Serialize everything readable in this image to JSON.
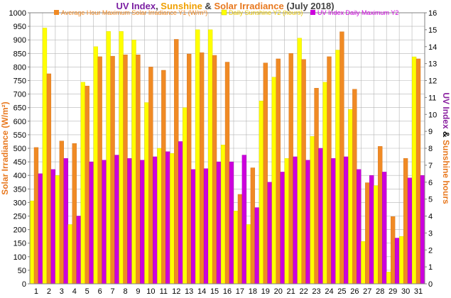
{
  "title": {
    "part1": "UV Index",
    "sep1": ", ",
    "part2": "Sunshine",
    "sep2": " & ",
    "part3": "Solar Irradiance",
    "part4": " (July 2018)",
    "colors": {
      "uv": "#7b1fa2",
      "sunshine": "#f0a000",
      "solar": "#e8781e",
      "plain": "#444444"
    }
  },
  "legend": [
    {
      "label": "Average Hour Maximum Solar Irradiance Y1 (W/m²)",
      "color": "#f08a24",
      "text_color": "#f08a24"
    },
    {
      "label": "Daily Sunshine Y2 (hours)",
      "color": "#ffff00",
      "text_color": "#e8c800"
    },
    {
      "label": "UV Index Daily Maximum Y2",
      "color": "#cc00dd",
      "text_color": "#cc00dd"
    }
  ],
  "y1_label": {
    "text": "Solar Irradiance (W/m²)",
    "color": "#e8781e"
  },
  "y2_label": {
    "part1": "UV Index",
    "part2": " & ",
    "part3": "Sunshine hours",
    "color_uv": "#8a20a0",
    "color_amp": "#000000",
    "color_sun": "#e8781e"
  },
  "chart_data": {
    "type": "bar",
    "categories": [
      "1",
      "2",
      "3",
      "4",
      "5",
      "6",
      "7",
      "8",
      "9",
      "10",
      "11",
      "12",
      "13",
      "14",
      "15",
      "16",
      "17",
      "18",
      "19",
      "20",
      "21",
      "22",
      "23",
      "24",
      "25",
      "26",
      "27",
      "28",
      "29",
      "30",
      "31"
    ],
    "y1lim": [
      0,
      1000
    ],
    "y2lim": [
      0,
      16
    ],
    "y1_ticks": [
      "0",
      "50",
      "100",
      "150",
      "200",
      "250",
      "300",
      "350",
      "400",
      "450",
      "500",
      "550",
      "600",
      "650",
      "700",
      "750",
      "800",
      "850",
      "900",
      "950",
      "1000"
    ],
    "y2_ticks": [
      "0",
      "1",
      "2",
      "3",
      "4",
      "5",
      "6",
      "7",
      "8",
      "9",
      "10",
      "11",
      "12",
      "13",
      "14",
      "15",
      "16"
    ],
    "y1_tick_color": "#e8781e",
    "y2_tick_color": "#8a20a0",
    "grid": true,
    "legend_position": "top",
    "series": [
      {
        "name": "Average Hour Maximum Solar Irradiance Y1 (W/m²)",
        "axis": "y1",
        "color": "#f08a24",
        "values": [
          503,
          775,
          527,
          518,
          730,
          838,
          840,
          845,
          845,
          800,
          788,
          902,
          848,
          853,
          843,
          818,
          330,
          428,
          815,
          830,
          850,
          828,
          722,
          838,
          930,
          718,
          373,
          507,
          248,
          463,
          830
        ]
      },
      {
        "name": "Daily Sunshine Y2 (hours)",
        "axis": "y2",
        "color": "#ffff00",
        "values": [
          4.9,
          15.1,
          6.4,
          3.5,
          11.9,
          14.0,
          14.9,
          14.9,
          14.4,
          10.7,
          8.0,
          7.7,
          10.4,
          15.0,
          15.0,
          8.2,
          4.3,
          3.5,
          10.8,
          12.2,
          7.4,
          14.5,
          8.7,
          11.9,
          13.8,
          10.3,
          2.5,
          5.8,
          0.7,
          2.8,
          13.4
        ]
      },
      {
        "name": "UV Index Daily Maximum Y2",
        "axis": "y2",
        "color": "#cc00dd",
        "values": [
          6.5,
          6.75,
          7.4,
          4.0,
          7.2,
          7.3,
          7.6,
          7.4,
          7.3,
          7.5,
          7.8,
          8.4,
          6.75,
          6.8,
          7.2,
          7.2,
          7.6,
          4.5,
          6.0,
          6.6,
          7.5,
          7.3,
          8.0,
          7.4,
          7.5,
          6.75,
          6.4,
          6.6,
          2.7,
          6.25,
          6.4
        ]
      }
    ]
  }
}
